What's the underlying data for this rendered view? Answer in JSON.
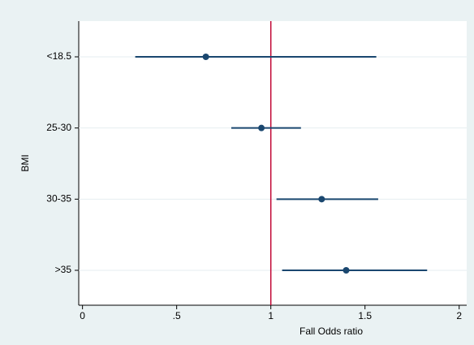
{
  "chart_data": {
    "type": "forest",
    "xlabel": "Fall Odds ratio",
    "ylabel": "BMI",
    "categories": [
      "<18.5",
      "25-30",
      "30-35",
      ">35"
    ],
    "values": [
      0.655,
      0.95,
      1.27,
      1.4
    ],
    "lower": [
      0.28,
      0.79,
      1.03,
      1.06
    ],
    "upper": [
      1.56,
      1.16,
      1.57,
      1.83
    ],
    "color": "#1a476f",
    "refline": 1,
    "refline_color": "#c10534",
    "xlim": [
      -0.02,
      2.04
    ],
    "xticks": [
      0,
      {
        "value": 0.5,
        "label": ".5"
      },
      1,
      1.5,
      2
    ],
    "grid": true
  }
}
